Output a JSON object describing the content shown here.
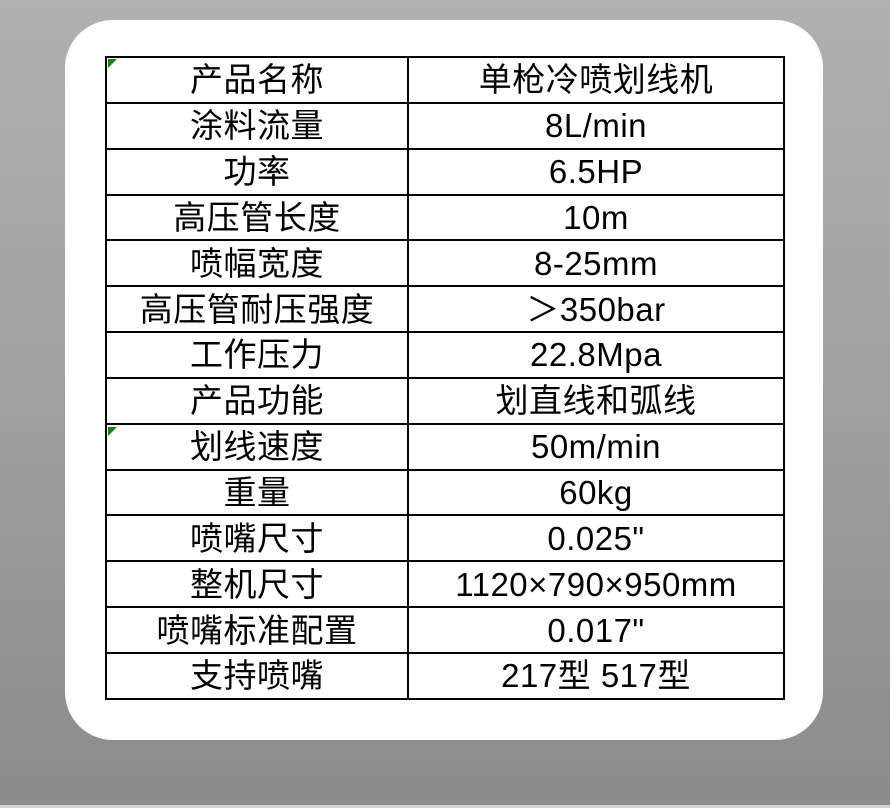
{
  "page": {
    "background_top_color": "#b0b0b0",
    "background_bottom_color": "#8b8b8b",
    "bottom_strip_color": "#d4d4d4",
    "card_color": "#ffffff",
    "table_border_color": "#000000",
    "cell_marker_color": "#1e7d1e"
  },
  "table": {
    "columns": [
      "label",
      "value"
    ],
    "marker_rows": [
      0,
      8
    ],
    "rows": [
      {
        "label": "产品名称",
        "value": "单枪冷喷划线机"
      },
      {
        "label": "涂料流量",
        "value": "8L/min"
      },
      {
        "label": "功率",
        "value": "6.5HP"
      },
      {
        "label": "高压管长度",
        "value": "10m"
      },
      {
        "label": "喷幅宽度",
        "value": "8-25mm"
      },
      {
        "label": "高压管耐压强度",
        "value": "＞350bar"
      },
      {
        "label": "工作压力",
        "value": "22.8Mpa"
      },
      {
        "label": "产品功能",
        "value": "划直线和弧线"
      },
      {
        "label": "划线速度",
        "value": "50m/min"
      },
      {
        "label": "重量",
        "value": "60kg"
      },
      {
        "label": "喷嘴尺寸",
        "value": "0.025\""
      },
      {
        "label": "整机尺寸",
        "value": "1120×790×950mm"
      },
      {
        "label": "喷嘴标准配置",
        "value": "0.017\""
      },
      {
        "label": "支持喷嘴",
        "value": "217型 517型"
      }
    ]
  }
}
